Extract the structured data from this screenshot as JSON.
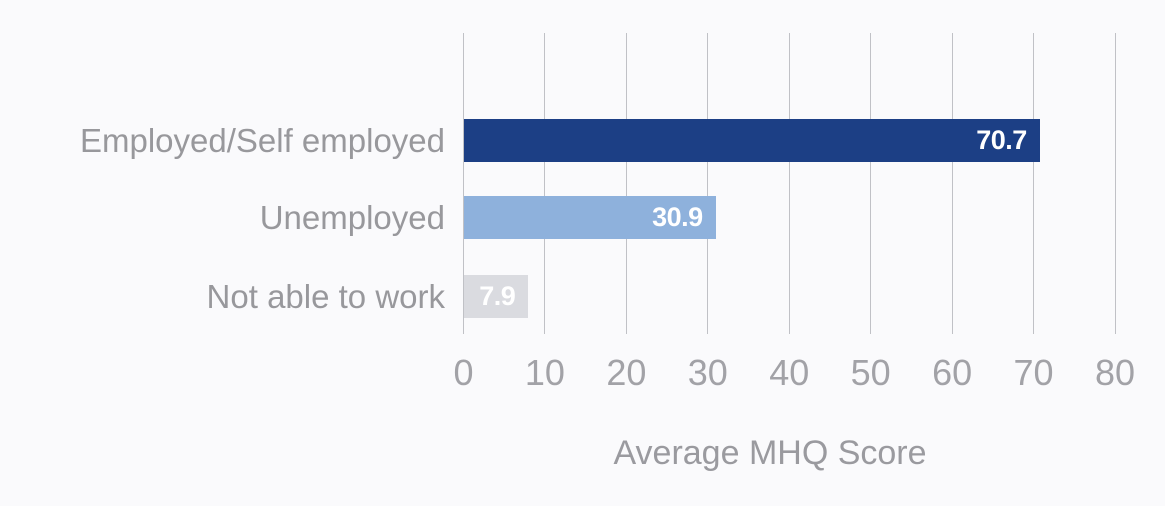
{
  "chart_data": {
    "type": "bar",
    "orientation": "horizontal",
    "title": "",
    "xlabel": "Average MHQ Score",
    "ylabel": "",
    "categories": [
      "Employed/Self employed",
      "Unemployed",
      "Not able to work"
    ],
    "values": [
      70.7,
      30.9,
      7.9
    ],
    "value_labels": [
      "70.7",
      "30.9",
      "7.9"
    ],
    "series": [
      {
        "name": "Average MHQ Score",
        "values": [
          70.7,
          30.9,
          7.9
        ]
      }
    ],
    "bar_colors": [
      "#1c3f85",
      "#8eb1dc",
      "#dadbe0"
    ],
    "xlim": [
      0,
      80
    ],
    "xticks": [
      0,
      10,
      20,
      30,
      40,
      50,
      60,
      70,
      80
    ],
    "grid": "vertical",
    "legend_position": "none",
    "colors": {
      "background": "#fafafc",
      "gridline": "#c0c1c6",
      "category_label": "#98989c",
      "tick_label": "#a2a2a7",
      "axis_label": "#9a9a9f",
      "value_label": "#ffffff"
    }
  }
}
